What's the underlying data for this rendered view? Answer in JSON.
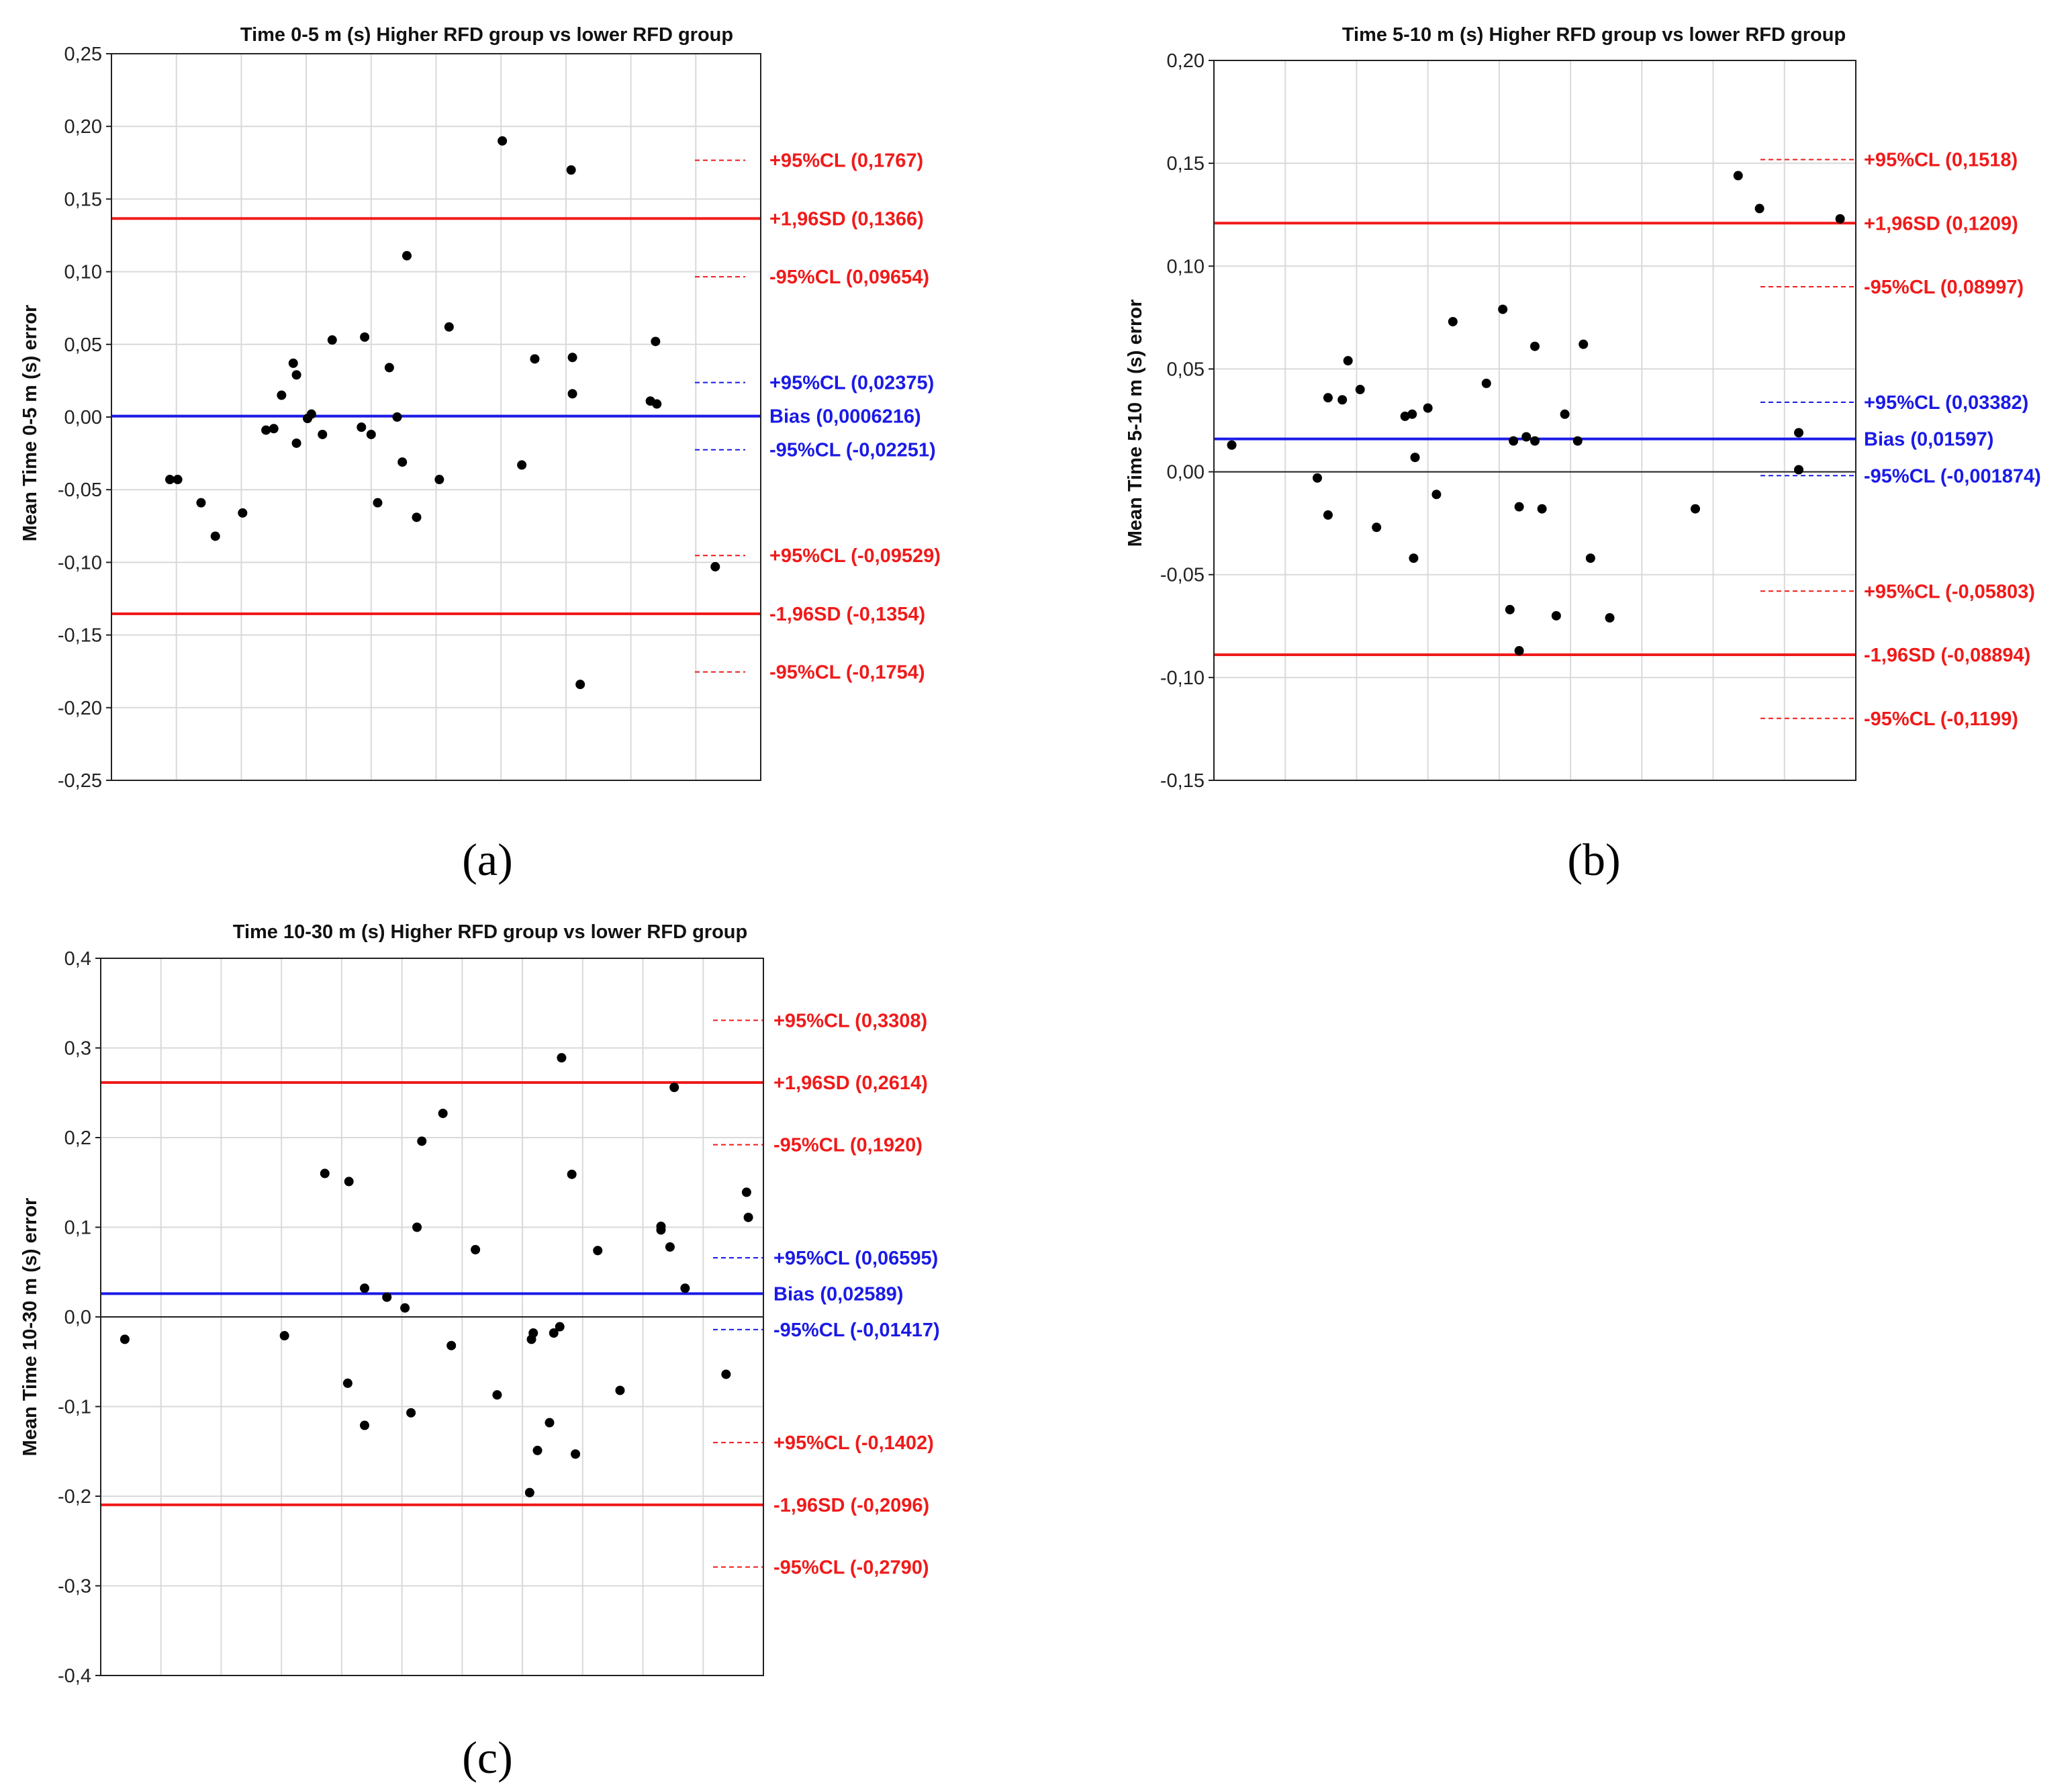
{
  "colors": {
    "red": "#f01a1a",
    "blue": "#1a1ae6",
    "grid": "#d9d9d9",
    "axis": "#222222",
    "point": "#000000"
  },
  "chart_data": [
    {
      "type": "scatter",
      "panel": "(a)",
      "title": "Time 0-5 m (s) Higher RFD group vs lower RFD group",
      "ylabel": "Mean Time 0-5 m (s) error",
      "xlabel": "",
      "ylim": [
        -0.25,
        0.25
      ],
      "yticks": [
        0.25,
        0.2,
        0.15,
        0.1,
        0.05,
        0.0,
        -0.05,
        -0.1,
        -0.15,
        -0.2,
        -0.25
      ],
      "ytick_labels": [
        "0,25",
        "0,20",
        "0,15",
        "0,10",
        "0,05",
        "0,00",
        "-0,05",
        "-0,10",
        "-0,15",
        "-0,20",
        "-0,25"
      ],
      "grid": true,
      "zero_line": false,
      "bias_line": {
        "value": 0.0006216,
        "label": "Bias (0,0006216)"
      },
      "sd_lines": [
        {
          "value": 0.1366,
          "label": "+1,96SD (0,1366)"
        },
        {
          "value": -0.1354,
          "label": "-1,96SD (-0,1354)"
        }
      ],
      "ci_lines": [
        {
          "value": 0.1767,
          "label": "+95%CL (0,1767)",
          "color": "red"
        },
        {
          "value": 0.09654,
          "label": "-95%CL (0,09654)",
          "color": "red"
        },
        {
          "value": 0.02375,
          "label": "+95%CL (0,02375)",
          "color": "blue"
        },
        {
          "value": -0.02251,
          "label": "-95%CL (-0,02251)",
          "color": "blue"
        },
        {
          "value": -0.09529,
          "label": "+95%CL (-0,09529)",
          "color": "red"
        },
        {
          "value": -0.1754,
          "label": "-95%CL (-0,1754)",
          "color": "red"
        }
      ],
      "points": [
        [
          0.9,
          -0.043
        ],
        [
          1.02,
          -0.043
        ],
        [
          1.38,
          -0.059
        ],
        [
          1.6,
          -0.082
        ],
        [
          2.02,
          -0.066
        ],
        [
          2.38,
          -0.009
        ],
        [
          2.5,
          -0.008
        ],
        [
          2.62,
          0.015
        ],
        [
          2.8,
          0.037
        ],
        [
          2.85,
          0.029
        ],
        [
          2.85,
          -0.018
        ],
        [
          3.02,
          -0.001
        ],
        [
          3.08,
          0.002
        ],
        [
          3.25,
          -0.012
        ],
        [
          3.4,
          0.053
        ],
        [
          3.85,
          -0.007
        ],
        [
          3.9,
          0.055
        ],
        [
          4.0,
          -0.012
        ],
        [
          4.1,
          -0.059
        ],
        [
          4.28,
          0.034
        ],
        [
          4.4,
          0.0
        ],
        [
          4.48,
          -0.031
        ],
        [
          4.55,
          0.111
        ],
        [
          4.7,
          -0.069
        ],
        [
          5.05,
          -0.043
        ],
        [
          5.2,
          0.062
        ],
        [
          6.02,
          0.19
        ],
        [
          6.32,
          -0.033
        ],
        [
          6.52,
          0.04
        ],
        [
          7.1,
          0.041
        ],
        [
          7.08,
          0.17
        ],
        [
          7.1,
          0.016
        ],
        [
          7.22,
          -0.184
        ],
        [
          8.3,
          0.011
        ],
        [
          8.38,
          0.052
        ],
        [
          8.4,
          0.009
        ],
        [
          9.3,
          -0.103
        ]
      ]
    },
    {
      "type": "scatter",
      "panel": "(b)",
      "title": "Time 5-10 m (s) Higher RFD group vs lower RFD group",
      "ylabel": "Mean Time 5-10 m (s) error",
      "xlabel": "",
      "ylim": [
        -0.15,
        0.2
      ],
      "yticks": [
        0.2,
        0.15,
        0.1,
        0.05,
        0.0,
        -0.05,
        -0.1,
        -0.15
      ],
      "ytick_labels": [
        "0,20",
        "0,15",
        "0,10",
        "0,05",
        "0,00",
        "-0,05",
        "-0,10",
        "-0,15"
      ],
      "grid": true,
      "zero_line": true,
      "bias_line": {
        "value": 0.01597,
        "label": "Bias (0,01597)"
      },
      "sd_lines": [
        {
          "value": 0.1209,
          "label": "+1,96SD (0,1209)"
        },
        {
          "value": -0.08894,
          "label": "-1,96SD (-0,08894)"
        }
      ],
      "ci_lines": [
        {
          "value": 0.1518,
          "label": "+95%CL (0,1518)",
          "color": "red"
        },
        {
          "value": 0.08997,
          "label": "-95%CL (0,08997)",
          "color": "red"
        },
        {
          "value": 0.03382,
          "label": "+95%CL (0,03382)",
          "color": "blue"
        },
        {
          "value": -0.001874,
          "label": "-95%CL (-0,001874)",
          "color": "blue"
        },
        {
          "value": -0.05803,
          "label": "+95%CL (-0,05803)",
          "color": "red"
        },
        {
          "value": -0.1199,
          "label": "-95%CL (-0,1199)",
          "color": "red"
        }
      ],
      "points": [
        [
          0.25,
          0.013
        ],
        [
          1.45,
          -0.003
        ],
        [
          1.6,
          0.036
        ],
        [
          1.6,
          -0.021
        ],
        [
          1.8,
          0.035
        ],
        [
          1.88,
          0.054
        ],
        [
          2.05,
          0.04
        ],
        [
          2.28,
          -0.027
        ],
        [
          2.68,
          0.027
        ],
        [
          2.78,
          0.028
        ],
        [
          2.8,
          -0.042
        ],
        [
          2.82,
          0.007
        ],
        [
          3.0,
          0.031
        ],
        [
          3.12,
          -0.011
        ],
        [
          3.35,
          0.073
        ],
        [
          3.82,
          0.043
        ],
        [
          4.05,
          0.079
        ],
        [
          4.15,
          -0.067
        ],
        [
          4.2,
          0.015
        ],
        [
          4.28,
          -0.017
        ],
        [
          4.28,
          -0.087
        ],
        [
          4.38,
          0.017
        ],
        [
          4.5,
          0.015
        ],
        [
          4.5,
          0.061
        ],
        [
          4.6,
          -0.018
        ],
        [
          4.8,
          -0.07
        ],
        [
          4.92,
          0.028
        ],
        [
          5.1,
          0.015
        ],
        [
          5.18,
          0.062
        ],
        [
          5.28,
          -0.042
        ],
        [
          5.55,
          -0.071
        ],
        [
          6.75,
          -0.018
        ],
        [
          7.35,
          0.144
        ],
        [
          7.65,
          0.128
        ],
        [
          8.2,
          0.019
        ],
        [
          8.2,
          0.001
        ],
        [
          8.78,
          0.123
        ]
      ]
    },
    {
      "type": "scatter",
      "panel": "(c)",
      "title": "Time 10-30 m (s) Higher RFD group vs lower RFD group",
      "ylabel": "Mean Time 10-30 m (s) error",
      "xlabel": "",
      "ylim": [
        -0.4,
        0.4
      ],
      "yticks": [
        0.4,
        0.3,
        0.2,
        0.1,
        0.0,
        -0.1,
        -0.2,
        -0.3,
        -0.4
      ],
      "ytick_labels": [
        "0,4",
        "0,3",
        "0,2",
        "0,1",
        "0,0",
        "-0,1",
        "-0,2",
        "-0,3",
        "-0,4"
      ],
      "grid": true,
      "zero_line": true,
      "bias_line": {
        "value": 0.02589,
        "label": "Bias (0,02589)"
      },
      "sd_lines": [
        {
          "value": 0.2614,
          "label": "+1,96SD (0,2614)"
        },
        {
          "value": -0.2096,
          "label": "-1,96SD (-0,2096)"
        }
      ],
      "ci_lines": [
        {
          "value": 0.3308,
          "label": "+95%CL (0,3308)",
          "color": "red"
        },
        {
          "value": 0.192,
          "label": "-95%CL (0,1920)",
          "color": "red"
        },
        {
          "value": 0.06595,
          "label": "+95%CL (0,06595)",
          "color": "blue"
        },
        {
          "value": -0.01417,
          "label": "-95%CL (-0,01417)",
          "color": "blue"
        },
        {
          "value": -0.1402,
          "label": "+95%CL (-0,1402)",
          "color": "red"
        },
        {
          "value": -0.279,
          "label": "-95%CL (-0,2790)",
          "color": "red"
        }
      ],
      "points": [
        [
          0.4,
          -0.025
        ],
        [
          3.05,
          -0.021
        ],
        [
          3.72,
          0.16
        ],
        [
          4.1,
          -0.074
        ],
        [
          4.12,
          0.151
        ],
        [
          4.38,
          0.032
        ],
        [
          4.38,
          -0.121
        ],
        [
          4.75,
          0.022
        ],
        [
          5.05,
          0.01
        ],
        [
          5.15,
          -0.107
        ],
        [
          5.25,
          0.1
        ],
        [
          5.33,
          0.196
        ],
        [
          5.68,
          0.227
        ],
        [
          5.82,
          -0.032
        ],
        [
          6.22,
          0.075
        ],
        [
          6.58,
          -0.087
        ],
        [
          7.12,
          -0.196
        ],
        [
          7.15,
          -0.025
        ],
        [
          7.18,
          -0.018
        ],
        [
          7.25,
          -0.149
        ],
        [
          7.45,
          -0.118
        ],
        [
          7.52,
          -0.018
        ],
        [
          7.62,
          -0.011
        ],
        [
          7.65,
          0.289
        ],
        [
          7.82,
          0.159
        ],
        [
          7.88,
          -0.153
        ],
        [
          8.25,
          0.074
        ],
        [
          8.62,
          -0.082
        ],
        [
          9.3,
          0.097
        ],
        [
          9.3,
          0.101
        ],
        [
          9.45,
          0.078
        ],
        [
          9.52,
          0.256
        ],
        [
          9.7,
          0.032
        ],
        [
          10.38,
          -0.064
        ],
        [
          10.72,
          0.139
        ],
        [
          10.75,
          0.111
        ]
      ]
    }
  ]
}
